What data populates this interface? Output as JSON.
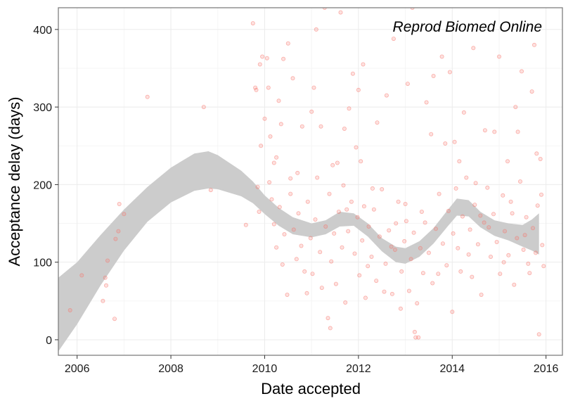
{
  "chart_data": {
    "type": "scatter",
    "title": "",
    "annotation": "Reprod Biomed Online",
    "xlabel": "Date accepted",
    "ylabel": "Acceptance delay (days)",
    "xlim": [
      2005.6,
      2016.35
    ],
    "ylim": [
      -20,
      428
    ],
    "x_ticks": [
      2006,
      2008,
      2010,
      2012,
      2014,
      2016
    ],
    "y_ticks": [
      0,
      100,
      200,
      300,
      400
    ],
    "grid": true,
    "legend": "none",
    "point_color": "#f8766d",
    "band_color": "#cccccc",
    "smooth_band": [
      [
        2005.6,
        -15,
        80
      ],
      [
        2006.0,
        20,
        100
      ],
      [
        2006.5,
        70,
        135
      ],
      [
        2007.0,
        115,
        168
      ],
      [
        2007.5,
        152,
        197
      ],
      [
        2008.0,
        177,
        222
      ],
      [
        2008.5,
        192,
        240
      ],
      [
        2008.8,
        195,
        243
      ],
      [
        2009.0,
        194,
        238
      ],
      [
        2009.5,
        185,
        218
      ],
      [
        2009.75,
        176,
        204
      ],
      [
        2010.0,
        162,
        186
      ],
      [
        2010.3,
        147,
        170
      ],
      [
        2010.6,
        136,
        158
      ],
      [
        2011.0,
        132,
        150
      ],
      [
        2011.3,
        136,
        154
      ],
      [
        2011.6,
        146,
        165
      ],
      [
        2011.9,
        147,
        163
      ],
      [
        2012.2,
        133,
        150
      ],
      [
        2012.5,
        114,
        131
      ],
      [
        2012.8,
        100,
        120
      ],
      [
        2013.0,
        98,
        118
      ],
      [
        2013.3,
        107,
        127
      ],
      [
        2013.6,
        124,
        144
      ],
      [
        2013.9,
        146,
        167
      ],
      [
        2014.1,
        160,
        182
      ],
      [
        2014.35,
        159,
        180
      ],
      [
        2014.6,
        145,
        165
      ],
      [
        2014.9,
        134,
        154
      ],
      [
        2015.2,
        128,
        150
      ],
      [
        2015.5,
        120,
        148
      ],
      [
        2015.7,
        115,
        155
      ],
      [
        2015.85,
        110,
        163
      ]
    ],
    "points": [
      [
        2005.85,
        38
      ],
      [
        2006.1,
        83
      ],
      [
        2006.55,
        50
      ],
      [
        2006.6,
        80
      ],
      [
        2006.62,
        70
      ],
      [
        2006.65,
        102
      ],
      [
        2006.8,
        27
      ],
      [
        2006.82,
        130
      ],
      [
        2006.88,
        140
      ],
      [
        2006.9,
        175
      ],
      [
        2007.0,
        162
      ],
      [
        2007.5,
        313
      ],
      [
        2008.7,
        300
      ],
      [
        2008.85,
        193
      ],
      [
        2009.6,
        148
      ],
      [
        2009.75,
        408
      ],
      [
        2009.8,
        325
      ],
      [
        2009.82,
        322
      ],
      [
        2009.85,
        197
      ],
      [
        2009.88,
        165
      ],
      [
        2009.9,
        355
      ],
      [
        2009.92,
        250
      ],
      [
        2009.95,
        365
      ],
      [
        2010.0,
        285
      ],
      [
        2010.05,
        363
      ],
      [
        2010.08,
        325
      ],
      [
        2010.12,
        262
      ],
      [
        2010.2,
        228
      ],
      [
        2010.25,
        235
      ],
      [
        2010.3,
        308
      ],
      [
        2010.35,
        278
      ],
      [
        2010.4,
        362
      ],
      [
        2010.5,
        382
      ],
      [
        2010.55,
        208
      ],
      [
        2010.6,
        337
      ],
      [
        2010.7,
        215
      ],
      [
        2010.8,
        275
      ],
      [
        2010.85,
        88
      ],
      [
        2010.9,
        60
      ],
      [
        2011.0,
        294
      ],
      [
        2011.05,
        325
      ],
      [
        2011.1,
        400
      ],
      [
        2011.2,
        275
      ],
      [
        2011.28,
        428
      ],
      [
        2011.35,
        28
      ],
      [
        2011.4,
        15
      ],
      [
        2011.45,
        225
      ],
      [
        2011.55,
        228
      ],
      [
        2011.62,
        422
      ],
      [
        2011.7,
        272
      ],
      [
        2011.75,
        168
      ],
      [
        2011.8,
        298
      ],
      [
        2011.88,
        343
      ],
      [
        2011.95,
        248
      ],
      [
        2012.0,
        322
      ],
      [
        2012.05,
        230
      ],
      [
        2012.1,
        355
      ],
      [
        2012.2,
        95
      ],
      [
        2012.3,
        195
      ],
      [
        2012.4,
        280
      ],
      [
        2012.55,
        62
      ],
      [
        2012.6,
        315
      ],
      [
        2012.7,
        120
      ],
      [
        2012.75,
        388
      ],
      [
        2012.8,
        150
      ],
      [
        2012.9,
        40
      ],
      [
        2013.0,
        175
      ],
      [
        2013.05,
        330
      ],
      [
        2013.15,
        428
      ],
      [
        2013.2,
        10
      ],
      [
        2013.22,
        3
      ],
      [
        2013.28,
        3
      ],
      [
        2013.35,
        165
      ],
      [
        2013.45,
        306
      ],
      [
        2013.55,
        265
      ],
      [
        2013.6,
        340
      ],
      [
        2013.7,
        85
      ],
      [
        2013.78,
        365
      ],
      [
        2013.85,
        253
      ],
      [
        2013.95,
        345
      ],
      [
        2014.0,
        36
      ],
      [
        2014.05,
        255
      ],
      [
        2014.15,
        230
      ],
      [
        2014.25,
        293
      ],
      [
        2014.35,
        110
      ],
      [
        2014.45,
        376
      ],
      [
        2014.5,
        202
      ],
      [
        2014.6,
        160
      ],
      [
        2014.7,
        270
      ],
      [
        2014.78,
        145
      ],
      [
        2014.9,
        268
      ],
      [
        2015.0,
        365
      ],
      [
        2015.1,
        100
      ],
      [
        2015.18,
        230
      ],
      [
        2015.25,
        178
      ],
      [
        2015.35,
        300
      ],
      [
        2015.4,
        268
      ],
      [
        2015.48,
        346
      ],
      [
        2015.55,
        135
      ],
      [
        2015.62,
        98
      ],
      [
        2015.7,
        320
      ],
      [
        2015.75,
        380
      ],
      [
        2015.8,
        240
      ],
      [
        2015.85,
        7
      ],
      [
        2015.88,
        233
      ],
      [
        2015.9,
        187
      ],
      [
        2015.92,
        122
      ],
      [
        2015.95,
        95
      ],
      [
        2010.1,
        203
      ],
      [
        2010.15,
        181
      ],
      [
        2010.2,
        149
      ],
      [
        2010.25,
        119
      ],
      [
        2010.32,
        171
      ],
      [
        2010.38,
        97
      ],
      [
        2010.42,
        136
      ],
      [
        2010.48,
        58
      ],
      [
        2010.55,
        188
      ],
      [
        2010.62,
        142
      ],
      [
        2010.68,
        104
      ],
      [
        2010.72,
        163
      ],
      [
        2010.78,
        121
      ],
      [
        2010.92,
        178
      ],
      [
        2010.98,
        131
      ],
      [
        2011.02,
        85
      ],
      [
        2011.08,
        155
      ],
      [
        2011.12,
        209
      ],
      [
        2011.18,
        113
      ],
      [
        2011.22,
        67
      ],
      [
        2011.3,
        146
      ],
      [
        2011.38,
        188
      ],
      [
        2011.42,
        101
      ],
      [
        2011.48,
        137
      ],
      [
        2011.52,
        72
      ],
      [
        2011.58,
        165
      ],
      [
        2011.65,
        119
      ],
      [
        2011.68,
        199
      ],
      [
        2011.72,
        48
      ],
      [
        2011.78,
        140
      ],
      [
        2011.85,
        178
      ],
      [
        2011.92,
        111
      ],
      [
        2011.98,
        158
      ],
      [
        2012.02,
        83
      ],
      [
        2012.08,
        128
      ],
      [
        2012.12,
        172
      ],
      [
        2012.15,
        54
      ],
      [
        2012.22,
        146
      ],
      [
        2012.28,
        107
      ],
      [
        2012.33,
        168
      ],
      [
        2012.38,
        76
      ],
      [
        2012.45,
        133
      ],
      [
        2012.5,
        194
      ],
      [
        2012.58,
        98
      ],
      [
        2012.65,
        141
      ],
      [
        2012.72,
        59
      ],
      [
        2012.78,
        116
      ],
      [
        2012.85,
        178
      ],
      [
        2012.92,
        88
      ],
      [
        2012.98,
        127
      ],
      [
        2013.02,
        153
      ],
      [
        2013.08,
        63
      ],
      [
        2013.12,
        104
      ],
      [
        2013.18,
        138
      ],
      [
        2013.25,
        47
      ],
      [
        2013.32,
        118
      ],
      [
        2013.38,
        86
      ],
      [
        2013.42,
        151
      ],
      [
        2013.5,
        112
      ],
      [
        2013.58,
        73
      ],
      [
        2013.65,
        143
      ],
      [
        2013.72,
        188
      ],
      [
        2013.8,
        124
      ],
      [
        2013.88,
        96
      ],
      [
        2013.92,
        166
      ],
      [
        2014.02,
        137
      ],
      [
        2014.08,
        195
      ],
      [
        2014.12,
        118
      ],
      [
        2014.18,
        88
      ],
      [
        2014.22,
        159
      ],
      [
        2014.3,
        209
      ],
      [
        2014.38,
        142
      ],
      [
        2014.42,
        81
      ],
      [
        2014.48,
        174
      ],
      [
        2014.55,
        123
      ],
      [
        2014.62,
        58
      ],
      [
        2014.68,
        151
      ],
      [
        2014.75,
        196
      ],
      [
        2014.82,
        107
      ],
      [
        2014.88,
        162
      ],
      [
        2014.95,
        126
      ],
      [
        2015.02,
        85
      ],
      [
        2015.08,
        186
      ],
      [
        2015.12,
        140
      ],
      [
        2015.2,
        109
      ],
      [
        2015.28,
        163
      ],
      [
        2015.32,
        71
      ],
      [
        2015.38,
        131
      ],
      [
        2015.45,
        204
      ],
      [
        2015.52,
        116
      ],
      [
        2015.58,
        158
      ],
      [
        2015.65,
        86
      ],
      [
        2015.72,
        144
      ],
      [
        2015.78,
        112
      ],
      [
        2015.82,
        173
      ]
    ]
  }
}
